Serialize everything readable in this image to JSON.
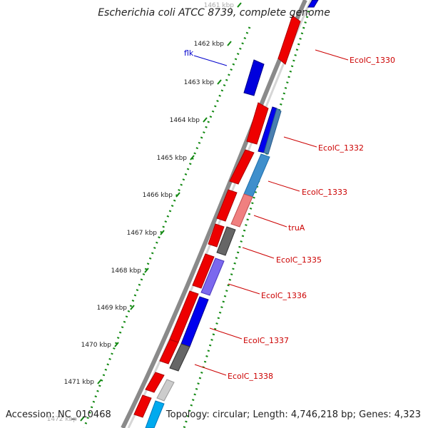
{
  "title": "Escherichia coli ATCC 8739, complete genome",
  "accession": "Accession: NC_010468",
  "topology": "Topology: circular; Length: 4,746,218 bp; Genes: 4,323",
  "colors": {
    "backbone": "#8a8a8a",
    "tick_dots": "#118811",
    "forward": "#ee0000",
    "gene_label": "#cc0000",
    "flk": "#0000cc"
  },
  "kbp_ticks": [
    {
      "label": "1461 kbp",
      "faded": true
    },
    {
      "label": "1462 kbp"
    },
    {
      "label": "1463 kbp"
    },
    {
      "label": "1464 kbp"
    },
    {
      "label": "1465 kbp"
    },
    {
      "label": "1466 kbp"
    },
    {
      "label": "1467 kbp"
    },
    {
      "label": "1468 kbp"
    },
    {
      "label": "1469 kbp"
    },
    {
      "label": "1470 kbp"
    },
    {
      "label": "1471 kbp"
    },
    {
      "label": "1472 kbp",
      "faded": true
    }
  ],
  "gene_labels": [
    {
      "text": "flk",
      "side": "left"
    },
    {
      "text": "EcolC_1330",
      "side": "right"
    },
    {
      "text": "EcolC_1332",
      "side": "right"
    },
    {
      "text": "EcolC_1333",
      "side": "right"
    },
    {
      "text": "truA",
      "side": "right"
    },
    {
      "text": "EcolC_1335",
      "side": "right"
    },
    {
      "text": "EcolC_1336",
      "side": "right"
    },
    {
      "text": "EcolC_1337",
      "side": "right"
    },
    {
      "text": "EcolC_1338",
      "side": "right"
    }
  ]
}
